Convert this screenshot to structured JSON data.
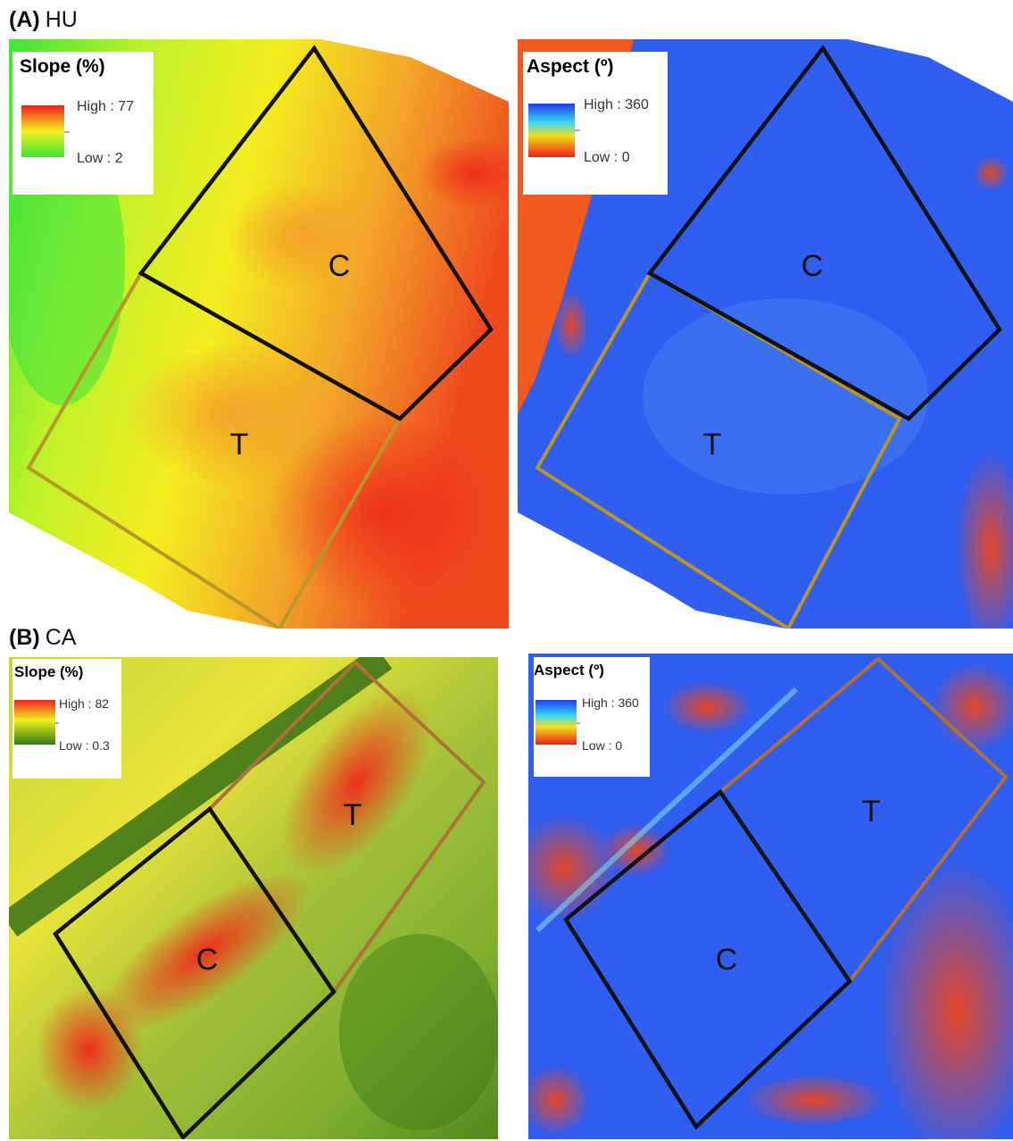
{
  "sections": [
    {
      "letter": "(A)",
      "site": "HU",
      "panels": [
        {
          "title": "Slope (%)",
          "high": "High : 77",
          "low": "Low : 2",
          "ramp": "slope-hu",
          "plot_control": "C",
          "plot_treatment": "T"
        },
        {
          "title": "Aspect (º)",
          "high": "High : 360",
          "low": "Low : 0",
          "ramp": "aspect",
          "plot_control": "C",
          "plot_treatment": "T"
        }
      ]
    },
    {
      "letter": "(B)",
      "site": "CA",
      "panels": [
        {
          "title": "Slope (%)",
          "high": "High : 82",
          "low": "Low : 0.3",
          "ramp": "slope-ca",
          "plot_control": "C",
          "plot_treatment": "T"
        },
        {
          "title": "Aspect (º)",
          "high": "High : 360",
          "low": "Low : 0",
          "ramp": "aspect",
          "plot_control": "C",
          "plot_treatment": "T"
        }
      ]
    }
  ],
  "colors": {
    "control_outline": "#111111",
    "treatment_outline_hu": "#b8962a",
    "treatment_outline_ca": "#b0703a",
    "slope_low_hu": "#3ee43a",
    "slope_mid": "#f2f21e",
    "slope_high": "#f01e1e",
    "slope_low_ca": "#2e7a12",
    "aspect_high": "#1e3cf0",
    "aspect_low": "#f01e14"
  }
}
